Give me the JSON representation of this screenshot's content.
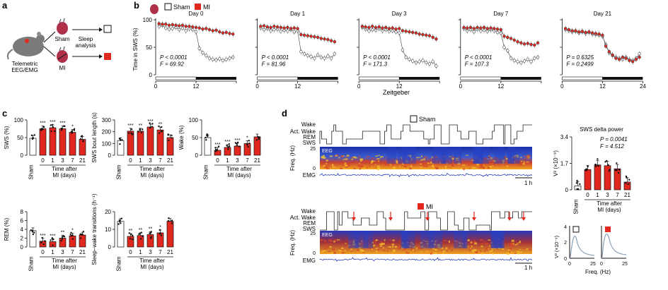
{
  "colors": {
    "red": "#e2271f",
    "grey": "#666666",
    "spectroLow": "#1b2fa8",
    "spectroHigh": "#f3a81c"
  },
  "panel_a": {
    "label": "a",
    "animal_text_1": "Telemetric",
    "animal_text_2": "EEG/EMG",
    "sham": "Sham",
    "mi": "MI",
    "sleep_1": "Sleep",
    "sleep_2": "analysis"
  },
  "panel_b": {
    "label": "b",
    "legend_sham": "Sham",
    "legend_mi": "MI",
    "ylabel": "Time in SWS (%)",
    "xlabel": "Zeitgeber",
    "yticks": [
      "0",
      "50",
      "100"
    ],
    "xticks": [
      "0",
      "12",
      "24"
    ],
    "days": [
      {
        "title": "Day 0",
        "p": "P < 0.0001",
        "f": "F = 69.92"
      },
      {
        "title": "Day 1",
        "p": "P < 0.0001",
        "f": "F = 81.96"
      },
      {
        "title": "Day 3",
        "p": "P < 0.0001",
        "f": "F = 171.3"
      },
      {
        "title": "Day 7",
        "p": "P < 0.0001",
        "f": "F = 107.3"
      },
      {
        "title": "Day 21",
        "p": "P = 0.6325",
        "f": "F = 0.2499"
      }
    ]
  },
  "panel_c": {
    "label": "c",
    "xlabel_1": "Time after",
    "xlabel_2": "MI (days)",
    "categories": [
      "Sham",
      "0",
      "1",
      "3",
      "7",
      "21"
    ]
  },
  "panel_d": {
    "label": "d",
    "sham_title": "Sham",
    "mi_title": "MI",
    "rows": [
      "Wake",
      "Act. Wake",
      "REM",
      "SWS"
    ],
    "freq_label": "Freq. (Hz)",
    "freq_ticks": [
      "25",
      "0"
    ],
    "eeg": "EEG",
    "emg": "EMG",
    "scale": "1 h",
    "inset_xlabel": "Freq. (Hz)",
    "inset_ylabel": "V² (×10⁻⁹)",
    "inset_yticks": [
      "4",
      "2",
      "0"
    ],
    "inset_xticks": [
      "0",
      "25",
      "0",
      "25"
    ]
  },
  "chart_data": [
    {
      "type": "line",
      "title": "Day 0",
      "xlabel": "Zeitgeber",
      "ylabel": "Time in SWS (%)",
      "xlim": [
        0,
        24
      ],
      "ylim": [
        0,
        100
      ],
      "series": [
        {
          "name": "Sham",
          "x": [
            1,
            2,
            3,
            4,
            5,
            6,
            7,
            8,
            9,
            10,
            11,
            12,
            13,
            14,
            15,
            16,
            17,
            18,
            19,
            20,
            21,
            22,
            23
          ],
          "values": [
            88,
            90,
            85,
            83,
            84,
            86,
            82,
            85,
            80,
            84,
            82,
            78,
            48,
            40,
            35,
            30,
            28,
            27,
            29,
            26,
            28,
            30,
            32
          ]
        },
        {
          "name": "MI",
          "x": [
            1,
            2,
            3,
            4,
            5,
            6,
            7,
            8,
            9,
            10,
            11,
            12,
            13,
            14,
            15,
            16,
            17,
            18,
            19,
            20,
            21,
            22,
            23
          ],
          "values": [
            93,
            92,
            92,
            90,
            91,
            90,
            89,
            90,
            88,
            88,
            87,
            86,
            85,
            83,
            84,
            82,
            80,
            81,
            78,
            76,
            77,
            75,
            74
          ]
        }
      ],
      "annotations": [
        "P < 0.0001",
        "F = 69.92"
      ]
    },
    {
      "type": "line",
      "title": "Day 1",
      "xlabel": "Zeitgeber",
      "ylabel": "Time in SWS (%)",
      "xlim": [
        0,
        24
      ],
      "ylim": [
        0,
        100
      ],
      "series": [
        {
          "name": "Sham",
          "x": [
            1,
            2,
            3,
            4,
            5,
            6,
            7,
            8,
            9,
            10,
            11,
            12,
            13,
            14,
            15,
            16,
            17,
            18,
            19,
            20,
            21,
            22,
            23
          ],
          "values": [
            85,
            82,
            84,
            80,
            82,
            83,
            79,
            81,
            80,
            82,
            78,
            80,
            42,
            38,
            35,
            33,
            30,
            36,
            32,
            30,
            34,
            30,
            38
          ]
        },
        {
          "name": "MI",
          "x": [
            1,
            2,
            3,
            4,
            5,
            6,
            7,
            8,
            9,
            10,
            11,
            12,
            13,
            14,
            15,
            16,
            17,
            18,
            19,
            20,
            21,
            22,
            23
          ],
          "values": [
            88,
            89,
            87,
            86,
            88,
            87,
            86,
            85,
            86,
            84,
            85,
            84,
            73,
            72,
            71,
            70,
            69,
            68,
            66,
            65,
            64,
            62,
            60
          ]
        }
      ],
      "annotations": [
        "P < 0.0001",
        "F = 81.96"
      ]
    },
    {
      "type": "line",
      "title": "Day 3",
      "xlabel": "Zeitgeber",
      "ylabel": "Time in SWS (%)",
      "xlim": [
        0,
        24
      ],
      "ylim": [
        0,
        100
      ],
      "series": [
        {
          "name": "Sham",
          "x": [
            1,
            2,
            3,
            4,
            5,
            6,
            7,
            8,
            9,
            10,
            11,
            12,
            13,
            14,
            15,
            16,
            17,
            18,
            19,
            20,
            21,
            22,
            23
          ],
          "values": [
            86,
            83,
            80,
            82,
            81,
            84,
            80,
            82,
            79,
            80,
            78,
            76,
            45,
            32,
            28,
            25,
            22,
            24,
            26,
            22,
            20,
            24,
            16
          ]
        },
        {
          "name": "MI",
          "x": [
            1,
            2,
            3,
            4,
            5,
            6,
            7,
            8,
            9,
            10,
            11,
            12,
            13,
            14,
            15,
            16,
            17,
            18,
            19,
            20,
            21,
            22,
            23
          ],
          "values": [
            88,
            87,
            86,
            88,
            86,
            87,
            85,
            86,
            84,
            85,
            83,
            84,
            80,
            79,
            78,
            77,
            76,
            74,
            73,
            72,
            71,
            68,
            65
          ]
        }
      ],
      "annotations": [
        "P < 0.0001",
        "F = 171.3"
      ]
    },
    {
      "type": "line",
      "title": "Day 7",
      "xlabel": "Zeitgeber",
      "ylabel": "Time in SWS (%)",
      "xlim": [
        0,
        24
      ],
      "ylim": [
        0,
        100
      ],
      "series": [
        {
          "name": "Sham",
          "x": [
            1,
            2,
            3,
            4,
            5,
            6,
            7,
            8,
            9,
            10,
            11,
            12,
            13,
            14,
            15,
            16,
            17,
            18,
            19,
            20,
            21,
            22,
            23
          ],
          "values": [
            84,
            80,
            82,
            78,
            83,
            80,
            81,
            79,
            82,
            80,
            77,
            76,
            50,
            44,
            30,
            26,
            24,
            22,
            25,
            28,
            24,
            30,
            32
          ]
        },
        {
          "name": "MI",
          "x": [
            1,
            2,
            3,
            4,
            5,
            6,
            7,
            8,
            9,
            10,
            11,
            12,
            13,
            14,
            15,
            16,
            17,
            18,
            19,
            20,
            21,
            22,
            23
          ],
          "values": [
            86,
            85,
            86,
            84,
            86,
            85,
            86,
            84,
            85,
            84,
            83,
            82,
            70,
            68,
            66,
            63,
            60,
            58,
            56,
            57,
            55,
            54,
            58
          ]
        }
      ],
      "annotations": [
        "P < 0.0001",
        "F = 107.3"
      ]
    },
    {
      "type": "line",
      "title": "Day 21",
      "xlabel": "Zeitgeber",
      "ylabel": "Time in SWS (%)",
      "xlim": [
        0,
        24
      ],
      "ylim": [
        0,
        100
      ],
      "series": [
        {
          "name": "Sham",
          "x": [
            1,
            2,
            3,
            4,
            5,
            6,
            7,
            8,
            9,
            10,
            11,
            12,
            13,
            14,
            15,
            16,
            17,
            18,
            19,
            20,
            21,
            22,
            23
          ],
          "values": [
            82,
            80,
            78,
            79,
            76,
            78,
            75,
            77,
            74,
            73,
            72,
            70,
            55,
            40,
            35,
            32,
            30,
            28,
            32,
            28,
            26,
            30,
            38
          ]
        },
        {
          "name": "MI",
          "x": [
            1,
            2,
            3,
            4,
            5,
            6,
            7,
            8,
            9,
            10,
            11,
            12,
            13,
            14,
            15,
            16,
            17,
            18,
            19,
            20,
            21,
            22,
            23
          ],
          "values": [
            84,
            82,
            80,
            80,
            78,
            79,
            77,
            78,
            76,
            75,
            74,
            72,
            52,
            42,
            36,
            30,
            28,
            32,
            30,
            26,
            24,
            28,
            32
          ]
        }
      ],
      "annotations": [
        "P = 0.6325",
        "F = 0.2499"
      ]
    },
    {
      "type": "bar",
      "ylabel": "SWS (%)",
      "ylim": [
        0,
        100
      ],
      "yticks": [
        0,
        50,
        100
      ],
      "categories": [
        "Sham",
        "0",
        "1",
        "3",
        "7",
        "21"
      ],
      "values": [
        48,
        75,
        78,
        75,
        65,
        45
      ],
      "significance": [
        "",
        "***",
        "***",
        "***",
        "*",
        ""
      ]
    },
    {
      "type": "bar",
      "ylabel": "SWS bout length (s)",
      "ylim": [
        0,
        300
      ],
      "yticks": [
        0,
        100,
        200,
        300
      ],
      "categories": [
        "Sham",
        "0",
        "1",
        "3",
        "7",
        "21"
      ],
      "values": [
        125,
        205,
        205,
        240,
        215,
        150
      ],
      "significance": [
        "",
        "***",
        "**",
        "***",
        "**",
        ""
      ]
    },
    {
      "type": "bar",
      "ylabel": "Wake (%)",
      "ylim": [
        0,
        100
      ],
      "yticks": [
        0,
        50,
        100
      ],
      "categories": [
        "Sham",
        "0",
        "1",
        "3",
        "7",
        "21"
      ],
      "values": [
        50,
        14,
        22,
        26,
        33,
        52
      ],
      "significance": [
        "",
        "***",
        "***",
        "***",
        "*",
        ""
      ]
    },
    {
      "type": "bar",
      "ylabel": "REM (%)",
      "ylim": [
        0,
        8
      ],
      "yticks": [
        0,
        2,
        4,
        6,
        8
      ],
      "categories": [
        "Sham",
        "0",
        "1",
        "3",
        "7",
        "21"
      ],
      "values": [
        3.7,
        1.3,
        1.2,
        2.0,
        2.5,
        2.7
      ],
      "significance": [
        "",
        "***",
        "***",
        "**",
        "*",
        ""
      ]
    },
    {
      "type": "bar",
      "ylabel": "Sleep–wake transitions (h⁻¹)",
      "ylim": [
        0,
        20
      ],
      "yticks": [
        0,
        10,
        20
      ],
      "categories": [
        "Sham",
        "0",
        "1",
        "3",
        "7",
        "21"
      ],
      "values": [
        14.5,
        6,
        6.5,
        7,
        8,
        14.5
      ],
      "significance": [
        "",
        "**",
        "**",
        "**",
        "*",
        ""
      ]
    },
    {
      "type": "bar",
      "title": "SWS delta power",
      "ylabel": "V² (×10⁻⁹)",
      "ylim": [
        0,
        3.4
      ],
      "yticks": [
        0,
        1.7,
        3.4
      ],
      "categories": [
        "Sham",
        "0",
        "1",
        "3",
        "7",
        "21"
      ],
      "values": [
        0.25,
        1.3,
        1.6,
        1.55,
        1.35,
        0.5
      ],
      "annotations": [
        "P = 0.0041",
        "F = 4.512"
      ]
    }
  ]
}
